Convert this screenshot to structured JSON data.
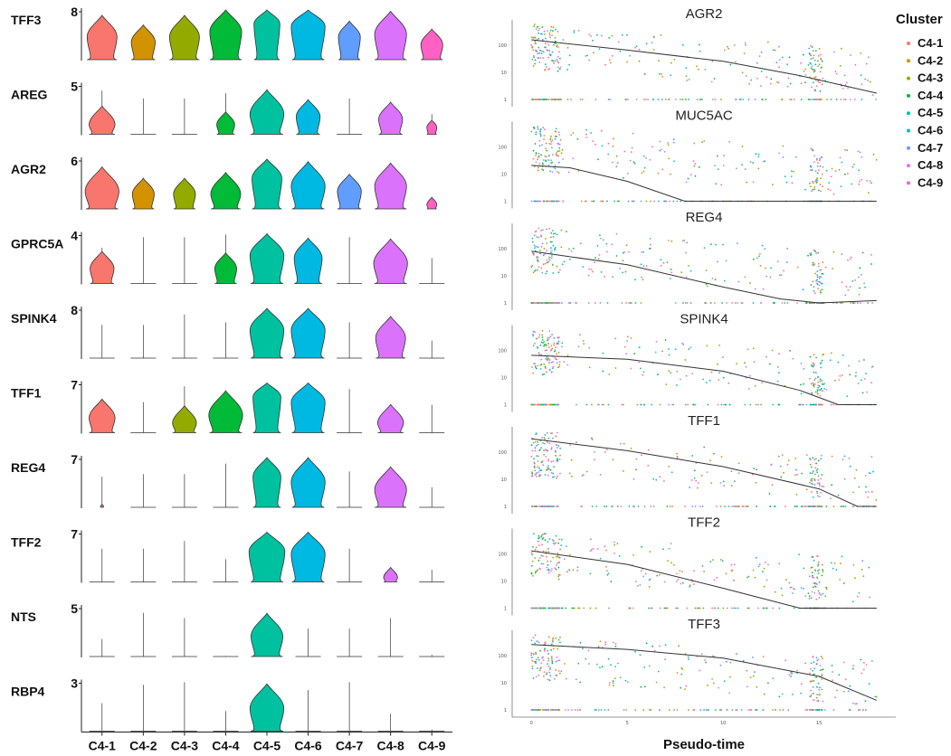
{
  "chart_data": [
    {
      "type": "violin",
      "categories": [
        "C4-1",
        "C4-2",
        "C4-3",
        "C4-4",
        "C4-5",
        "C4-6",
        "C4-7",
        "C4-8",
        "C4-9"
      ],
      "colors": [
        "#F8766D",
        "#D39200",
        "#93AA00",
        "#00BA38",
        "#00C19F",
        "#00B9E3",
        "#619CFF",
        "#DB72FB",
        "#FF61C3"
      ],
      "genes": [
        {
          "name": "TFF3",
          "ymax": "8",
          "center": [
            0.45,
            0.35,
            0.45,
            0.55,
            0.7,
            0.65,
            0.45,
            0.5,
            0.3
          ],
          "size": [
            0.75,
            0.6,
            0.75,
            0.8,
            0.65,
            0.85,
            0.55,
            0.8,
            0.55
          ],
          "tail": [
            0.0,
            0.0,
            0.0,
            0.0,
            0.3,
            0.0,
            0.0,
            0.0,
            0.0
          ]
        },
        {
          "name": "AREG",
          "ymax": "5",
          "center": [
            0.2,
            0.05,
            0.05,
            0.2,
            0.4,
            0.35,
            0.05,
            0.3,
            0.15
          ],
          "size": [
            0.65,
            0.05,
            0.05,
            0.45,
            0.85,
            0.6,
            0.05,
            0.6,
            0.25
          ],
          "tail": [
            0.85,
            0.7,
            0.7,
            0.8,
            0.0,
            0.0,
            0.7,
            0.0,
            0.4
          ]
        },
        {
          "name": "AGR2",
          "ymax": "6",
          "center": [
            0.35,
            0.3,
            0.3,
            0.3,
            0.6,
            0.45,
            0.35,
            0.45,
            0.1
          ],
          "size": [
            0.85,
            0.55,
            0.55,
            0.75,
            0.75,
            0.85,
            0.6,
            0.8,
            0.25
          ],
          "tail": [
            0.0,
            0.0,
            0.4,
            0.0,
            0.3,
            0.0,
            0.0,
            0.0,
            0.0
          ]
        },
        {
          "name": "GPRC5A",
          "ymax": "4",
          "center": [
            0.3,
            0.03,
            0.03,
            0.3,
            0.55,
            0.5,
            0.03,
            0.4,
            0.03
          ],
          "size": [
            0.6,
            0.03,
            0.03,
            0.55,
            0.85,
            0.7,
            0.03,
            0.85,
            0.03
          ],
          "tail": [
            0.7,
            0.9,
            0.9,
            0.95,
            0.0,
            0.0,
            0.9,
            0.0,
            0.5
          ]
        },
        {
          "name": "SPINK4",
          "ymax": "8",
          "center": [
            0.03,
            0.03,
            0.03,
            0.03,
            0.55,
            0.55,
            0.03,
            0.4,
            0.03
          ],
          "size": [
            0.03,
            0.03,
            0.03,
            0.03,
            0.85,
            0.85,
            0.03,
            0.75,
            0.03
          ],
          "tail": [
            0.65,
            0.65,
            0.85,
            0.7,
            0.0,
            0.0,
            0.7,
            0.0,
            0.35
          ]
        },
        {
          "name": "TFF1",
          "ymax": "7",
          "center": [
            0.3,
            0.03,
            0.2,
            0.35,
            0.7,
            0.6,
            0.03,
            0.2,
            0.03
          ],
          "size": [
            0.65,
            0.05,
            0.6,
            0.85,
            0.7,
            0.85,
            0.03,
            0.65,
            0.03
          ],
          "tail": [
            0.0,
            0.6,
            0.9,
            0.0,
            0.0,
            0.0,
            0.85,
            0.5,
            0.55
          ]
        },
        {
          "name": "REG4",
          "ymax": "7",
          "center": [
            0.03,
            0.03,
            0.03,
            0.03,
            0.6,
            0.5,
            0.03,
            0.35,
            0.03
          ],
          "size": [
            0.08,
            0.03,
            0.03,
            0.03,
            0.7,
            0.85,
            0.03,
            0.8,
            0.03
          ],
          "tail": [
            0.6,
            0.65,
            0.65,
            0.85,
            0.0,
            0.0,
            0.7,
            0.0,
            0.4
          ]
        },
        {
          "name": "TFF2",
          "ymax": "7",
          "center": [
            0.03,
            0.03,
            0.03,
            0.03,
            0.6,
            0.55,
            0.03,
            0.1,
            0.03
          ],
          "size": [
            0.03,
            0.03,
            0.03,
            0.03,
            0.9,
            0.85,
            0.03,
            0.35,
            0.03
          ],
          "tail": [
            0.65,
            0.65,
            0.8,
            0.45,
            0.0,
            0.0,
            0.65,
            0.0,
            0.25
          ]
        },
        {
          "name": "NTS",
          "ymax": "5",
          "center": [
            0.03,
            0.03,
            0.03,
            0.03,
            0.4,
            0.03,
            0.03,
            0.03,
            0.03
          ],
          "size": [
            0.03,
            0.03,
            0.03,
            0.03,
            0.8,
            0.03,
            0.03,
            0.03,
            0.03
          ],
          "tail": [
            0.35,
            0.85,
            0.75,
            0.03,
            0.0,
            0.55,
            0.55,
            0.75,
            0.05
          ]
        },
        {
          "name": "RBP4",
          "ymax": "3",
          "center": [
            0.03,
            0.03,
            0.03,
            0.03,
            0.45,
            0.03,
            0.03,
            0.03,
            0.03
          ],
          "size": [
            0.03,
            0.03,
            0.03,
            0.03,
            0.85,
            0.03,
            0.03,
            0.03,
            0.03
          ],
          "tail": [
            0.55,
            0.9,
            0.95,
            0.4,
            0.0,
            0.8,
            0.95,
            0.35,
            0.05
          ]
        }
      ]
    },
    {
      "type": "scatter",
      "xlabel": "Pseudo-time",
      "xlim": [
        -1,
        19
      ],
      "xticks": [
        "0",
        "5",
        "10",
        "15"
      ],
      "yticks": [
        "1",
        "10",
        "100"
      ],
      "panels": [
        {
          "name": "AGR2",
          "trend": [
            [
              0,
              0.75
            ],
            [
              5,
              0.62
            ],
            [
              10,
              0.48
            ],
            [
              14,
              0.3
            ],
            [
              18,
              0.08
            ]
          ]
        },
        {
          "name": "MUC5AC",
          "trend": [
            [
              0,
              0.45
            ],
            [
              2,
              0.42
            ],
            [
              5,
              0.25
            ],
            [
              8,
              0.0
            ],
            [
              18,
              0.0
            ]
          ]
        },
        {
          "name": "REG4",
          "trend": [
            [
              0,
              0.65
            ],
            [
              5,
              0.48
            ],
            [
              10,
              0.2
            ],
            [
              13,
              0.05
            ],
            [
              15,
              0.0
            ],
            [
              18,
              0.03
            ]
          ]
        },
        {
          "name": "SPINK4",
          "trend": [
            [
              0,
              0.62
            ],
            [
              5,
              0.57
            ],
            [
              10,
              0.42
            ],
            [
              14,
              0.18
            ],
            [
              16,
              0.0
            ],
            [
              18,
              0.0
            ]
          ]
        },
        {
          "name": "TFF1",
          "trend": [
            [
              0,
              0.85
            ],
            [
              5,
              0.7
            ],
            [
              10,
              0.5
            ],
            [
              15,
              0.22
            ],
            [
              17,
              0.0
            ],
            [
              18,
              0.0
            ]
          ]
        },
        {
          "name": "TFF2",
          "trend": [
            [
              0,
              0.72
            ],
            [
              5,
              0.55
            ],
            [
              10,
              0.25
            ],
            [
              14,
              0.0
            ],
            [
              18,
              0.0
            ]
          ]
        },
        {
          "name": "TFF3",
          "trend": [
            [
              0,
              0.82
            ],
            [
              5,
              0.76
            ],
            [
              10,
              0.65
            ],
            [
              15,
              0.42
            ],
            [
              18,
              0.12
            ]
          ]
        }
      ]
    }
  ],
  "legend": {
    "title": "Cluster",
    "items": [
      "C4-1",
      "C4-2",
      "C4-3",
      "C4-4",
      "C4-5",
      "C4-6",
      "C4-7",
      "C4-8",
      "C4-9"
    ]
  }
}
